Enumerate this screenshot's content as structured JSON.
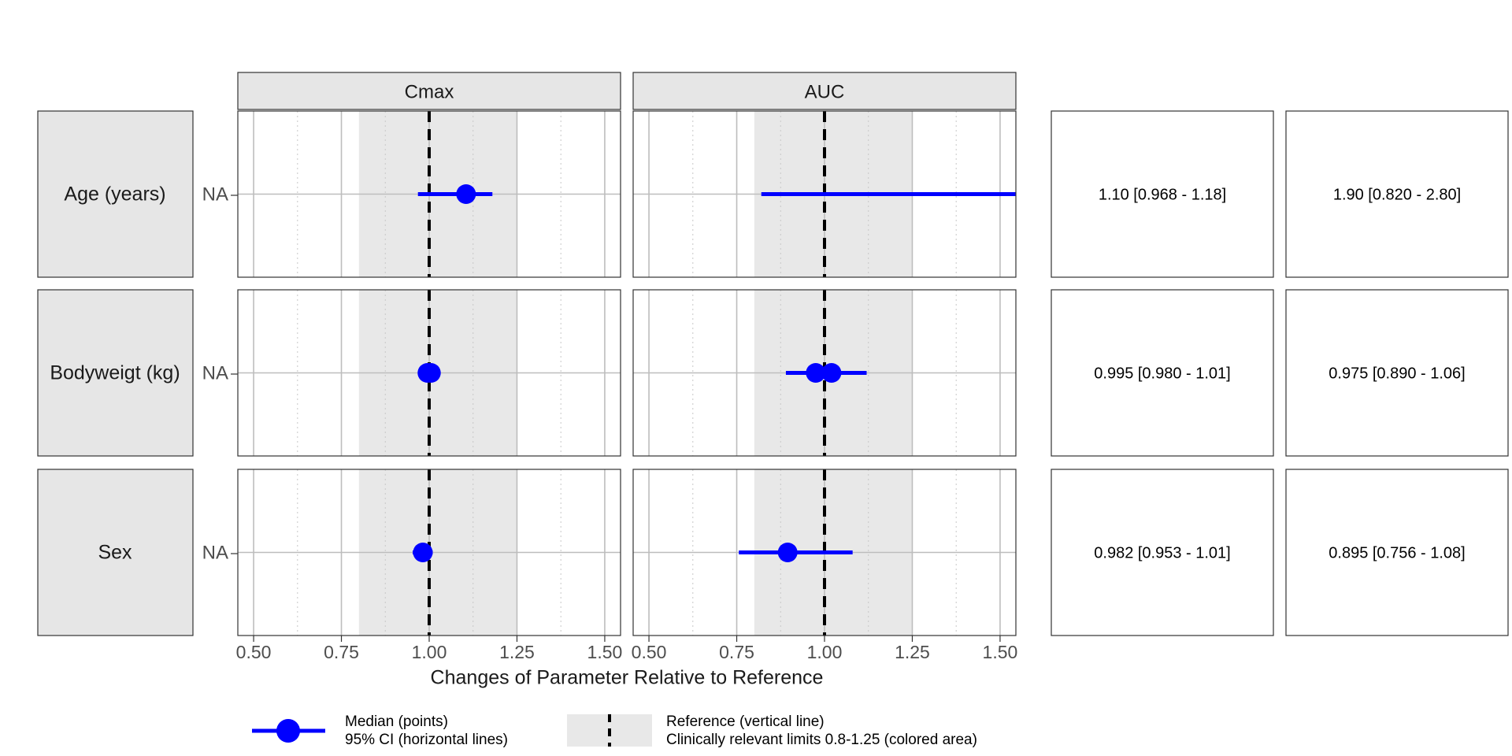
{
  "chart_data": {
    "type": "forest",
    "title": "",
    "xlabel": "Changes of Parameter Relative to Reference",
    "xlim": [
      0.455,
      1.545
    ],
    "xticks": [
      0.5,
      0.75,
      1.0,
      1.25,
      1.5
    ],
    "xtick_labels": [
      "0.50",
      "0.75",
      "1.00",
      "1.25",
      "1.50"
    ],
    "reference_value": 1.0,
    "clinical_limits": [
      0.8,
      1.25
    ],
    "point_color": "#0000ff",
    "band_color": "#e8e8e8",
    "ytick_label": "NA",
    "panels": [
      "Cmax",
      "AUC"
    ],
    "rows": [
      {
        "label": "Age (years)",
        "estimates": {
          "Cmax": [
            {
              "median": 1.105,
              "low": 0.968,
              "high": 1.18
            }
          ],
          "AUC": [
            {
              "median": 1.9,
              "low": 0.82,
              "high": 2.8
            }
          ]
        },
        "table_text": [
          "1.10 [0.968 - 1.18]",
          "1.90 [0.820 - 2.80]"
        ]
      },
      {
        "label": "Bodyweigt (kg)",
        "estimates": {
          "Cmax": [
            {
              "median": 0.995,
              "low": 0.98,
              "high": 1.01
            },
            {
              "median": 1.005,
              "low": 0.99,
              "high": 1.02
            }
          ],
          "AUC": [
            {
              "median": 0.975,
              "low": 0.89,
              "high": 1.06
            },
            {
              "median": 1.02,
              "low": 0.95,
              "high": 1.12
            }
          ]
        },
        "table_text": [
          "0.995 [0.980 - 1.01]",
          "0.975 [0.890 - 1.06]"
        ]
      },
      {
        "label": "Sex",
        "estimates": {
          "Cmax": [
            {
              "median": 0.982,
              "low": 0.953,
              "high": 1.01
            }
          ],
          "AUC": [
            {
              "median": 0.895,
              "low": 0.756,
              "high": 1.08
            }
          ]
        },
        "table_text": [
          "0.982 [0.953 - 1.01]",
          "0.895 [0.756 - 1.08]"
        ]
      }
    ],
    "legend": {
      "placement": "bottom",
      "median_line1": "Median (points)",
      "median_line2": "95% CI (horizontal lines)",
      "reference_line1": "Reference (vertical line)",
      "reference_line2": "Clinically relevant limits 0.8-1.25 (colored area)"
    }
  }
}
